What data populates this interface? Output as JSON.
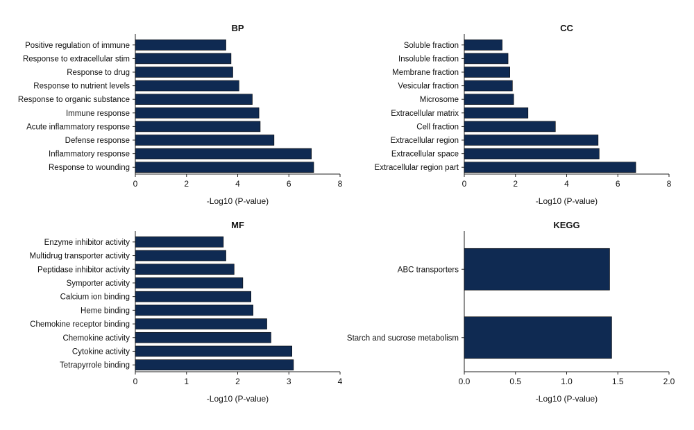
{
  "colors": {
    "bar": "#0f2a52",
    "axis": "#222222"
  },
  "chart_data": [
    {
      "type": "bar",
      "orientation": "horizontal",
      "title": "BP",
      "xlabel": "-Log10 (P-value)",
      "xlim": [
        0,
        8
      ],
      "xticks": [
        "0",
        "2",
        "4",
        "6",
        "8"
      ],
      "categories": [
        "Positive regulation of immune",
        "Response to extracellular stim",
        "Response to drug",
        "Response to nutrient levels",
        "Response to organic substance",
        "Immune response",
        "Acute inflammatory response",
        "Defense response",
        "Inflammatory response",
        "Response to wounding"
      ],
      "values": [
        3.54,
        3.74,
        3.81,
        4.05,
        4.57,
        4.83,
        4.88,
        5.42,
        6.88,
        6.97
      ]
    },
    {
      "type": "bar",
      "orientation": "horizontal",
      "title": "CC",
      "xlabel": "-Log10 (P-value)",
      "xlim": [
        0,
        8
      ],
      "xticks": [
        "0",
        "2",
        "4",
        "6",
        "8"
      ],
      "categories": [
        "Soluble fraction",
        "Insoluble fraction",
        "Membrane fraction",
        "Vesicular fraction",
        "Microsome",
        "Extracellular matrix",
        "Cell fraction",
        "Extracellular region",
        "Extracellular space",
        "Extracellular region part"
      ],
      "values": [
        1.48,
        1.71,
        1.78,
        1.88,
        1.93,
        2.49,
        3.56,
        5.23,
        5.27,
        6.7
      ]
    },
    {
      "type": "bar",
      "orientation": "horizontal",
      "title": "MF",
      "xlabel": "-Log10 (P-value)",
      "xlim": [
        0,
        4
      ],
      "xticks": [
        "0",
        "1",
        "2",
        "3",
        "4"
      ],
      "categories": [
        "Enzyme inhibitor activity",
        "Multidrug transporter activity",
        "Peptidase inhibitor activity",
        "Symporter activity",
        "Calcium ion binding",
        "Heme binding",
        "Chemokine receptor binding",
        "Chemokine activity",
        "Cytokine activity",
        "Tetrapyrrole binding"
      ],
      "values": [
        1.72,
        1.77,
        1.93,
        2.1,
        2.26,
        2.3,
        2.57,
        2.65,
        3.06,
        3.09
      ]
    },
    {
      "type": "bar",
      "orientation": "horizontal",
      "title": "KEGG",
      "xlabel": "-Log10 (P-value)",
      "xlim": [
        0,
        2
      ],
      "xticks": [
        "0.0",
        "0.5",
        "1.0",
        "1.5",
        "2.0"
      ],
      "categories": [
        "ABC transporters",
        "Starch and sucrose metabolism"
      ],
      "values": [
        1.42,
        1.44
      ]
    }
  ]
}
